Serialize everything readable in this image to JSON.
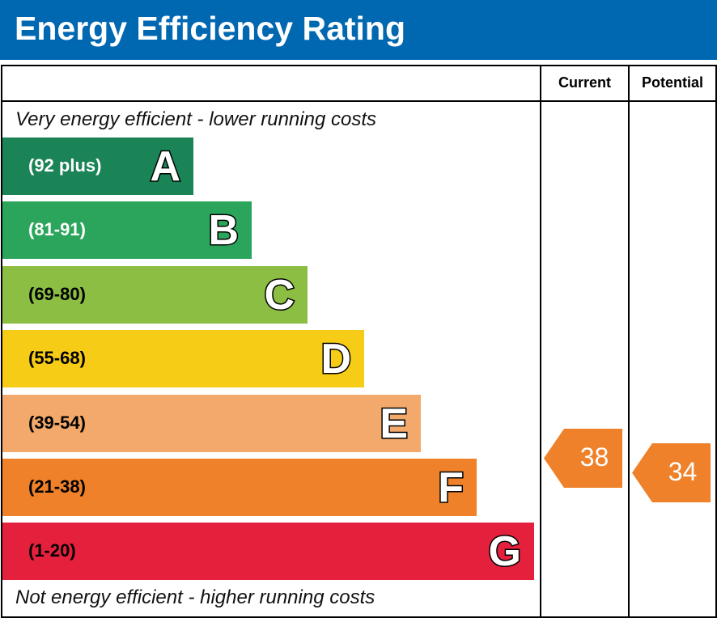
{
  "title": "Energy Efficiency Rating",
  "chart_data": {
    "type": "bar",
    "title": "Energy Efficiency Rating",
    "columns": [
      "Current",
      "Potential"
    ],
    "top_note": "Very energy efficient - lower running costs",
    "bottom_note": "Not energy efficient - higher running costs",
    "bands": [
      {
        "letter": "A",
        "range": "(92 plus)",
        "color": "#1a8456",
        "text_color": "#ffffff"
      },
      {
        "letter": "B",
        "range": "(81-91)",
        "color": "#2ba55b",
        "text_color": "#ffffff"
      },
      {
        "letter": "C",
        "range": "(69-80)",
        "color": "#8cbe44",
        "text_color": "#000000"
      },
      {
        "letter": "D",
        "range": "(55-68)",
        "color": "#f6cc17",
        "text_color": "#000000"
      },
      {
        "letter": "E",
        "range": "(39-54)",
        "color": "#f2a96b",
        "text_color": "#000000"
      },
      {
        "letter": "F",
        "range": "(21-38)",
        "color": "#ee8129",
        "text_color": "#000000"
      },
      {
        "letter": "G",
        "range": "(1-20)",
        "color": "#e4203d",
        "text_color": "#000000"
      }
    ],
    "current": {
      "value": "38",
      "band": "F",
      "color": "#ee8129"
    },
    "potential": {
      "value": "34",
      "band": "F",
      "color": "#ee8129"
    }
  }
}
